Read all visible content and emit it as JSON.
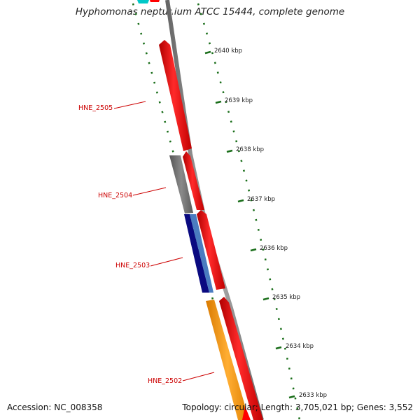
{
  "title": "Hyphomonas neptunium ATCC 15444, complete genome",
  "footer": {
    "accession": "Accession: NC_008358",
    "summary": "Topology: circular; Length: 3,705,021 bp; Genes: 3,552"
  },
  "ticks": [
    {
      "label": "2640 kbp"
    },
    {
      "label": "2639 kbp"
    },
    {
      "label": "2638 kbp"
    },
    {
      "label": "2637 kbp"
    },
    {
      "label": "2636 kbp"
    },
    {
      "label": "2635 kbp"
    },
    {
      "label": "2634 kbp"
    },
    {
      "label": "2633 kbp"
    }
  ],
  "genes": [
    {
      "label": "HNE_2505"
    },
    {
      "label": "HNE_2504"
    },
    {
      "label": "HNE_2503"
    },
    {
      "label": "HNE_2502"
    }
  ],
  "colors": {
    "cds": "#ff0000",
    "gray_feature": "#707070",
    "navy_feature": "#0a0a80",
    "blue_feature": "#4a7cc0",
    "orange_feature": "#ff9a00",
    "cyan_feature": "#00c8c8",
    "backbone": "#8a8a8a",
    "dots": "#1a6e1a"
  }
}
